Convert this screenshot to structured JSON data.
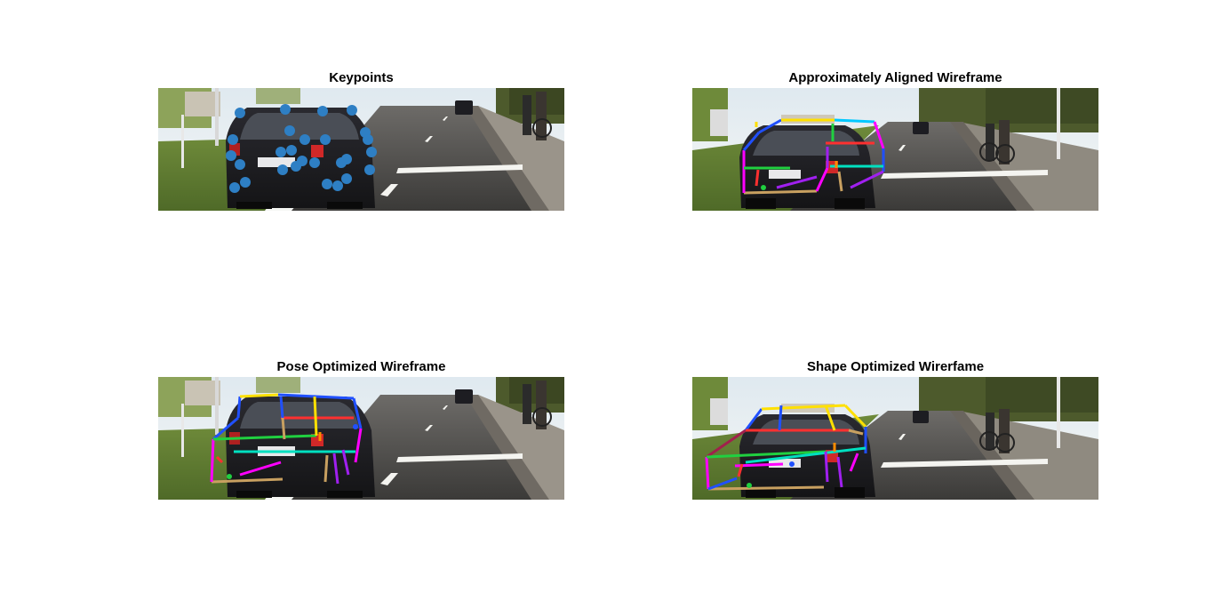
{
  "figure": {
    "panels": [
      {
        "title": "Keypoints",
        "overlay": "keypoints",
        "scene": "A"
      },
      {
        "title": "Approximately Aligned Wireframe",
        "overlay": "wireframe-coarse",
        "scene": "B"
      },
      {
        "title": "Pose Optimized Wireframe",
        "overlay": "wireframe-pose",
        "scene": "A"
      },
      {
        "title": "Shape Optimized Wirerfame",
        "overlay": "wireframe-shape",
        "scene": "B"
      }
    ]
  },
  "colors": {
    "keypoint": "#2e7fc4",
    "wire_palette": [
      "#ff00ff",
      "#00e0c0",
      "#ff3030",
      "#2050ff",
      "#ffe000",
      "#20d040",
      "#ff8c00",
      "#a020f0",
      "#c8a060",
      "#00c8ff"
    ]
  }
}
